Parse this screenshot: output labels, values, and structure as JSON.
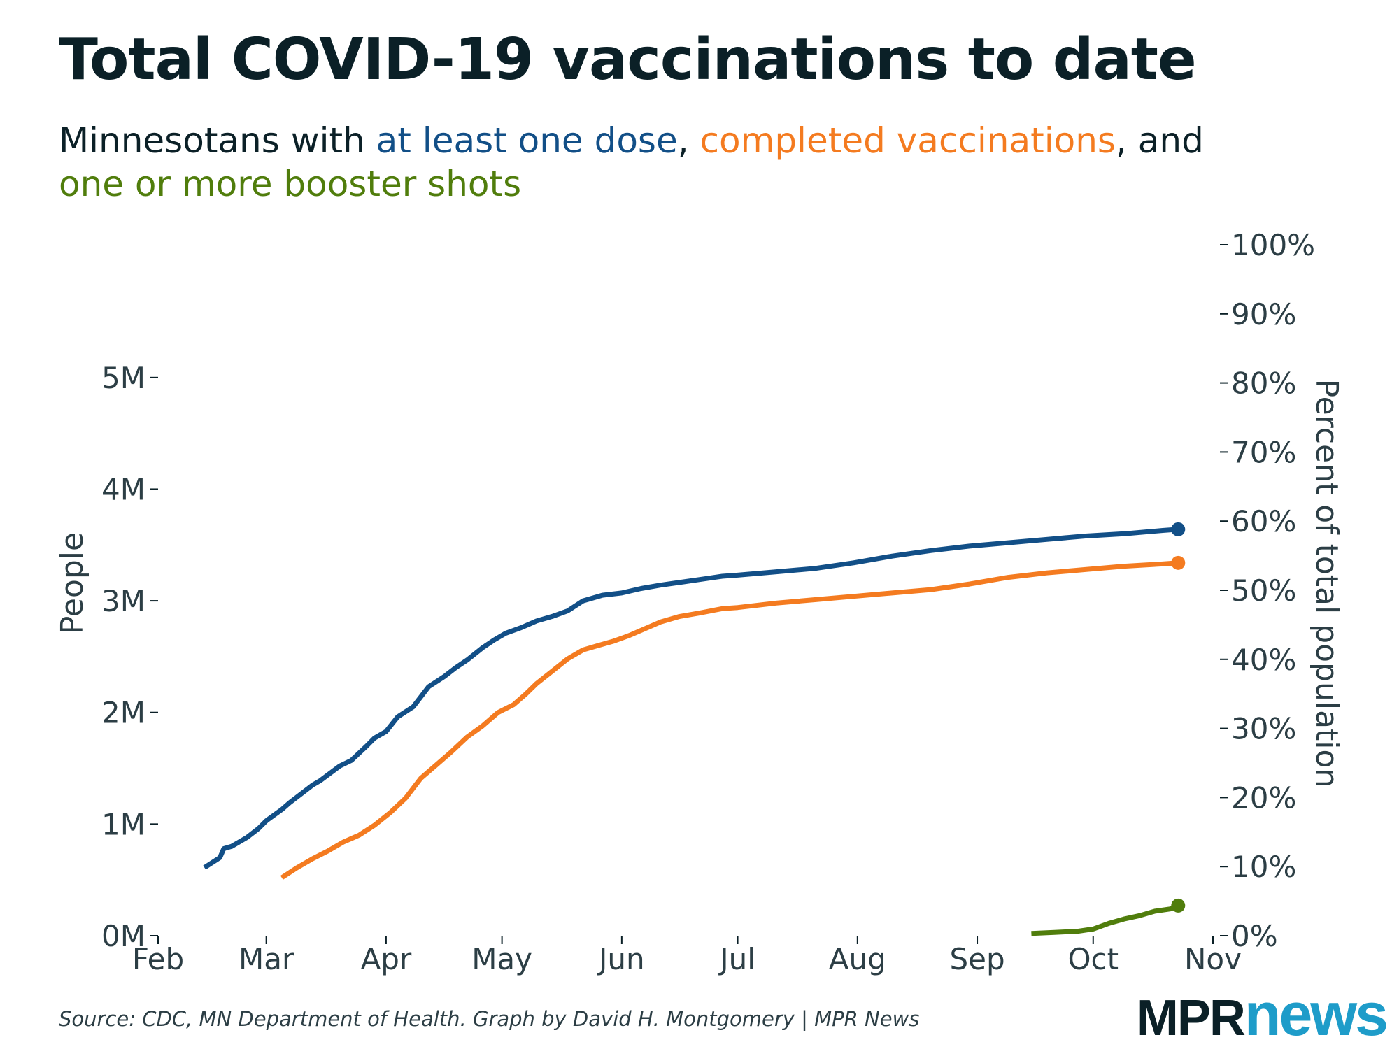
{
  "title": "Total COVID-19 vaccinations to date",
  "subtitle": {
    "prefix": "Minnesotans with ",
    "dose": "at least one dose",
    "sep1": ", ",
    "completed": "completed vaccinations",
    "sep2": ", and",
    "booster": "one or more booster shots"
  },
  "source": "Source: CDC, MN Department of Health. Graph by David H. Montgomery | MPR News",
  "logo": {
    "part1": "MPR",
    "part2": "news"
  },
  "colors": {
    "dose": "#124f87",
    "completed": "#f47b20",
    "booster": "#507d0c",
    "text": "#0b2027",
    "axis": "#0b2027"
  },
  "chart_data": {
    "type": "line",
    "ylabel": "People",
    "y2label": "Percent of total population",
    "ylim": [
      0,
      5000000
    ],
    "y_ticks": [
      0,
      1000000,
      2000000,
      3000000,
      4000000,
      5000000
    ],
    "y_tick_labels": [
      "0M",
      "1M",
      "2M",
      "3M",
      "4M",
      "5M"
    ],
    "y2lim": [
      0,
      100
    ],
    "y2_ticks": [
      0,
      10,
      20,
      30,
      40,
      50,
      60,
      70,
      80,
      90,
      100
    ],
    "y2_tick_labels": [
      "0%",
      "10%",
      "20%",
      "30%",
      "40%",
      "50%",
      "60%",
      "70%",
      "80%",
      "90%",
      "100%"
    ],
    "x_unit": "days since Feb 1, 2021",
    "xlim": [
      0,
      273
    ],
    "x_ticks": [
      0,
      28,
      59,
      89,
      120,
      150,
      181,
      212,
      242,
      273
    ],
    "x_tick_labels": [
      "Feb",
      "Mar",
      "Apr",
      "May",
      "Jun",
      "Jul",
      "Aug",
      "Sep",
      "Oct",
      "Nov"
    ],
    "series": [
      {
        "name": "at least one dose",
        "color": "#124f87",
        "end_marker": true,
        "x": [
          12,
          16,
          17,
          19,
          23,
          26,
          28,
          32,
          34,
          40,
          42,
          47,
          50,
          54,
          56,
          59,
          62,
          66,
          70,
          74,
          77,
          80,
          84,
          87,
          90,
          94,
          98,
          102,
          106,
          110,
          115,
          120,
          125,
          130,
          136,
          140,
          146,
          150,
          160,
          170,
          180,
          190,
          200,
          210,
          220,
          230,
          240,
          250,
          260,
          264
        ],
        "y": [
          610000,
          700000,
          780000,
          800000,
          880000,
          960000,
          1030000,
          1130000,
          1190000,
          1350000,
          1390000,
          1520000,
          1570000,
          1700000,
          1770000,
          1830000,
          1960000,
          2050000,
          2230000,
          2320000,
          2400000,
          2470000,
          2580000,
          2650000,
          2710000,
          2760000,
          2820000,
          2860000,
          2910000,
          3000000,
          3050000,
          3070000,
          3110000,
          3140000,
          3170000,
          3190000,
          3220000,
          3230000,
          3260000,
          3290000,
          3340000,
          3400000,
          3450000,
          3490000,
          3520000,
          3550000,
          3580000,
          3600000,
          3630000,
          3640000
        ]
      },
      {
        "name": "completed vaccinations",
        "color": "#f47b20",
        "end_marker": true,
        "x": [
          32,
          36,
          40,
          44,
          48,
          52,
          56,
          60,
          64,
          68,
          72,
          76,
          80,
          84,
          88,
          92,
          95,
          98,
          102,
          106,
          110,
          114,
          118,
          122,
          126,
          130,
          135,
          140,
          146,
          150,
          160,
          170,
          180,
          190,
          200,
          210,
          220,
          230,
          240,
          250,
          260,
          264
        ],
        "y": [
          520000,
          610000,
          690000,
          760000,
          840000,
          900000,
          990000,
          1100000,
          1230000,
          1410000,
          1530000,
          1650000,
          1780000,
          1880000,
          2000000,
          2070000,
          2160000,
          2260000,
          2370000,
          2480000,
          2560000,
          2600000,
          2640000,
          2690000,
          2750000,
          2810000,
          2860000,
          2890000,
          2930000,
          2940000,
          2980000,
          3010000,
          3040000,
          3070000,
          3100000,
          3150000,
          3210000,
          3250000,
          3280000,
          3310000,
          3330000,
          3340000
        ]
      },
      {
        "name": "one or more booster shots",
        "color": "#507d0c",
        "end_marker": true,
        "x": [
          226,
          232,
          238,
          242,
          246,
          250,
          254,
          258,
          262,
          264
        ],
        "y": [
          20000,
          30000,
          40000,
          60000,
          110000,
          150000,
          180000,
          220000,
          240000,
          270000
        ]
      }
    ]
  }
}
